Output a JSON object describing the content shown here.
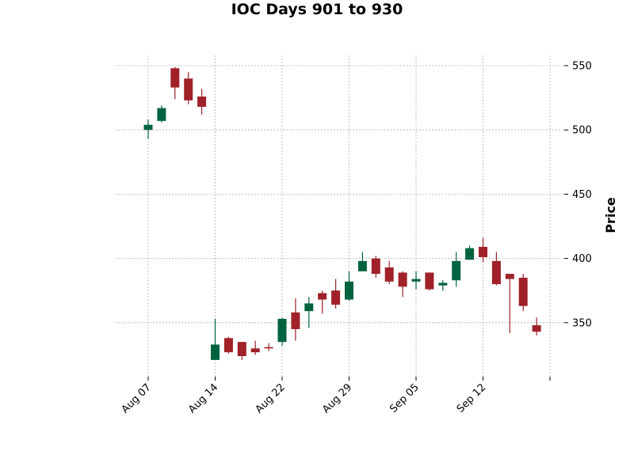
{
  "chart_data": {
    "type": "candlestick",
    "title": "IOC Days 901 to 930",
    "xlabel": "",
    "ylabel": "Price",
    "ylim": [
      308,
      558
    ],
    "yticks": [
      350,
      400,
      450,
      500,
      550
    ],
    "grid": true,
    "colors": {
      "up": "#006340",
      "down": "#a02128"
    },
    "xtick_labels": [
      {
        "label": "Aug 07",
        "index": 0
      },
      {
        "label": "Aug 14",
        "index": 5
      },
      {
        "label": "Aug 22",
        "index": 10
      },
      {
        "label": "Aug 29",
        "index": 15
      },
      {
        "label": "Sep 05",
        "index": 20
      },
      {
        "label": "Sep 12",
        "index": 25
      },
      {
        "label": "",
        "index": 30
      }
    ],
    "candles": [
      {
        "open": 500,
        "high": 508,
        "low": 493,
        "close": 504
      },
      {
        "open": 507,
        "high": 519,
        "low": 506,
        "close": 517
      },
      {
        "open": 548,
        "high": 549,
        "low": 524,
        "close": 533
      },
      {
        "open": 540,
        "high": 545,
        "low": 520,
        "close": 523
      },
      {
        "open": 526,
        "high": 532,
        "low": 512,
        "close": 518
      },
      {
        "open": 321,
        "high": 353,
        "low": 321,
        "close": 333
      },
      {
        "open": 338,
        "high": 339,
        "low": 326,
        "close": 327
      },
      {
        "open": 335,
        "high": 335,
        "low": 321,
        "close": 324
      },
      {
        "open": 330,
        "high": 336,
        "low": 325,
        "close": 327
      },
      {
        "open": 331,
        "high": 334,
        "low": 328,
        "close": 330
      },
      {
        "open": 335,
        "high": 354,
        "low": 332,
        "close": 353
      },
      {
        "open": 358,
        "high": 369,
        "low": 336,
        "close": 345
      },
      {
        "open": 359,
        "high": 370,
        "low": 346,
        "close": 365
      },
      {
        "open": 373,
        "high": 375,
        "low": 357,
        "close": 368
      },
      {
        "open": 375,
        "high": 384,
        "low": 361,
        "close": 364
      },
      {
        "open": 368,
        "high": 390,
        "low": 367,
        "close": 382
      },
      {
        "open": 390,
        "high": 405,
        "low": 390,
        "close": 398
      },
      {
        "open": 400,
        "high": 402,
        "low": 385,
        "close": 388
      },
      {
        "open": 393,
        "high": 398,
        "low": 380,
        "close": 382
      },
      {
        "open": 389,
        "high": 390,
        "low": 370,
        "close": 378
      },
      {
        "open": 382,
        "high": 390,
        "low": 376,
        "close": 384
      },
      {
        "open": 389,
        "high": 389,
        "low": 375,
        "close": 376
      },
      {
        "open": 379,
        "high": 383,
        "low": 375,
        "close": 381
      },
      {
        "open": 383,
        "high": 405,
        "low": 378,
        "close": 398
      },
      {
        "open": 399,
        "high": 410,
        "low": 399,
        "close": 408
      },
      {
        "open": 409,
        "high": 416,
        "low": 397,
        "close": 401
      },
      {
        "open": 398,
        "high": 405,
        "low": 379,
        "close": 380
      },
      {
        "open": 388,
        "high": 388,
        "low": 342,
        "close": 384
      },
      {
        "open": 385,
        "high": 388,
        "low": 359,
        "close": 363
      },
      {
        "open": 348,
        "high": 354,
        "low": 340,
        "close": 343
      }
    ]
  }
}
